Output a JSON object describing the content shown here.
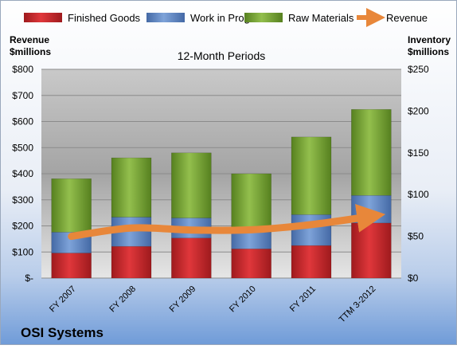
{
  "chart_data": {
    "type": "bar",
    "title": "OSI Systems",
    "subtitle": "12-Month Periods",
    "categories": [
      "FY 2007",
      "FY 2008",
      "FY 2009",
      "FY 2010",
      "FY 2011",
      "TTM 3-2012"
    ],
    "stacked": true,
    "series": [
      {
        "name": "Finished Goods",
        "axis": "right",
        "color": "#c0262a",
        "values": [
          30,
          38,
          48,
          35,
          39,
          66
        ]
      },
      {
        "name": "Work in Progress",
        "axis": "right",
        "color": "#5b85c2",
        "values": [
          25,
          35,
          24,
          20,
          37,
          33
        ]
      },
      {
        "name": "Raw Materials",
        "axis": "right",
        "color": "#6e9a2e",
        "values": [
          64,
          71,
          78,
          70,
          93,
          103
        ]
      }
    ],
    "line_series": {
      "name": "Revenue",
      "axis": "left",
      "color": "#e8873a",
      "values": [
        160,
        192,
        184,
        185,
        205,
        237
      ]
    },
    "left_axis": {
      "label_line1": "Revenue",
      "label_line2": "$millions",
      "ylim": [
        0,
        800
      ],
      "ticks": [
        0,
        100,
        200,
        300,
        400,
        500,
        600,
        700,
        800
      ],
      "tick_labels": [
        "$-",
        "$100",
        "$200",
        "$300",
        "$400",
        "$500",
        "$600",
        "$700",
        "$800"
      ]
    },
    "right_axis": {
      "label_line1": "Inventory",
      "label_line2": "$millions",
      "ylim": [
        0,
        250
      ],
      "ticks": [
        0,
        50,
        100,
        150,
        200,
        250
      ],
      "tick_labels": [
        "$0",
        "$50",
        "$100",
        "$150",
        "$200",
        "$250"
      ]
    },
    "legend_position": "top",
    "grid": true
  }
}
